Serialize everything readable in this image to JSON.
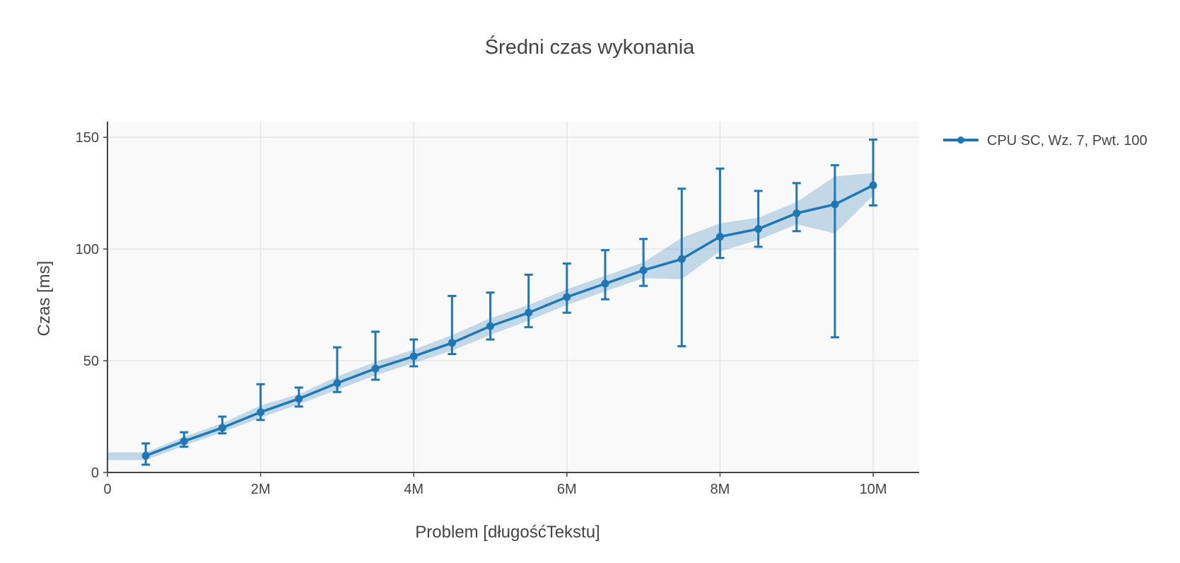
{
  "chart_data": {
    "type": "line",
    "title": "Średni czas wykonania",
    "xlabel": "Problem [długośćTekstu]",
    "ylabel": "Czas [ms]",
    "xlim": [
      0,
      10600000
    ],
    "ylim": [
      0,
      157
    ],
    "x_ticks": [
      {
        "value": 0,
        "label": "0"
      },
      {
        "value": 2000000,
        "label": "2M"
      },
      {
        "value": 4000000,
        "label": "4M"
      },
      {
        "value": 6000000,
        "label": "6M"
      },
      {
        "value": 8000000,
        "label": "8M"
      },
      {
        "value": 10000000,
        "label": "10M"
      }
    ],
    "y_ticks": [
      {
        "value": 0,
        "label": "0"
      },
      {
        "value": 50,
        "label": "50"
      },
      {
        "value": 100,
        "label": "100"
      },
      {
        "value": 150,
        "label": "150"
      }
    ],
    "grid": true,
    "legend_position": "top-right",
    "series": [
      {
        "name": "CPU SC, Wz. 7, Pwt. 100",
        "color": "#1f77b4",
        "band_color": "#1f77b4",
        "points": [
          {
            "x": 500000,
            "y": 7.5,
            "err_low": 3.5,
            "err_high": 13
          },
          {
            "x": 1000000,
            "y": 14,
            "err_low": 11.5,
            "err_high": 18
          },
          {
            "x": 1500000,
            "y": 20,
            "err_low": 17.5,
            "err_high": 25
          },
          {
            "x": 2000000,
            "y": 27,
            "err_low": 23.5,
            "err_high": 39.5
          },
          {
            "x": 2500000,
            "y": 33,
            "err_low": 29.5,
            "err_high": 38
          },
          {
            "x": 3000000,
            "y": 40,
            "err_low": 36,
            "err_high": 56
          },
          {
            "x": 3500000,
            "y": 46.5,
            "err_low": 41.5,
            "err_high": 63
          },
          {
            "x": 4000000,
            "y": 52,
            "err_low": 47.5,
            "err_high": 59.5
          },
          {
            "x": 4500000,
            "y": 58,
            "err_low": 53,
            "err_high": 79
          },
          {
            "x": 5000000,
            "y": 65.5,
            "err_low": 59.5,
            "err_high": 80.5
          },
          {
            "x": 5500000,
            "y": 71.5,
            "err_low": 65,
            "err_high": 88.5
          },
          {
            "x": 6000000,
            "y": 78.5,
            "err_low": 71.5,
            "err_high": 93.5
          },
          {
            "x": 6500000,
            "y": 84.5,
            "err_low": 77.5,
            "err_high": 99.5
          },
          {
            "x": 7000000,
            "y": 90.5,
            "err_low": 83.5,
            "err_high": 104.5
          },
          {
            "x": 7500000,
            "y": 95.5,
            "err_low": 56.5,
            "err_high": 127
          },
          {
            "x": 8000000,
            "y": 105.5,
            "err_low": 96,
            "err_high": 136
          },
          {
            "x": 8500000,
            "y": 109,
            "err_low": 101,
            "err_high": 126
          },
          {
            "x": 9000000,
            "y": 116,
            "err_low": 108,
            "err_high": 129.5
          },
          {
            "x": 9500000,
            "y": 120,
            "err_low": 60.5,
            "err_high": 137.5
          },
          {
            "x": 10000000,
            "y": 128.5,
            "err_low": 119.5,
            "err_high": 149
          }
        ],
        "band": {
          "x": [
            0,
            500000,
            1000000,
            1500000,
            2000000,
            2500000,
            3000000,
            3500000,
            4000000,
            4500000,
            5000000,
            5500000,
            6000000,
            6500000,
            7000000,
            7500000,
            8000000,
            8500000,
            9000000,
            9500000,
            10000000
          ],
          "upper": [
            9,
            9,
            16,
            22,
            30,
            35,
            43,
            49.5,
            55,
            61.5,
            69,
            75,
            82,
            88,
            94,
            105,
            111.5,
            114,
            121,
            132.5,
            134
          ],
          "lower": [
            5.5,
            5.5,
            12,
            18,
            24.5,
            30.5,
            37,
            43.5,
            49,
            54.5,
            61.5,
            68,
            75,
            81,
            87,
            86.5,
            99,
            104,
            111,
            107,
            124
          ]
        }
      }
    ]
  }
}
